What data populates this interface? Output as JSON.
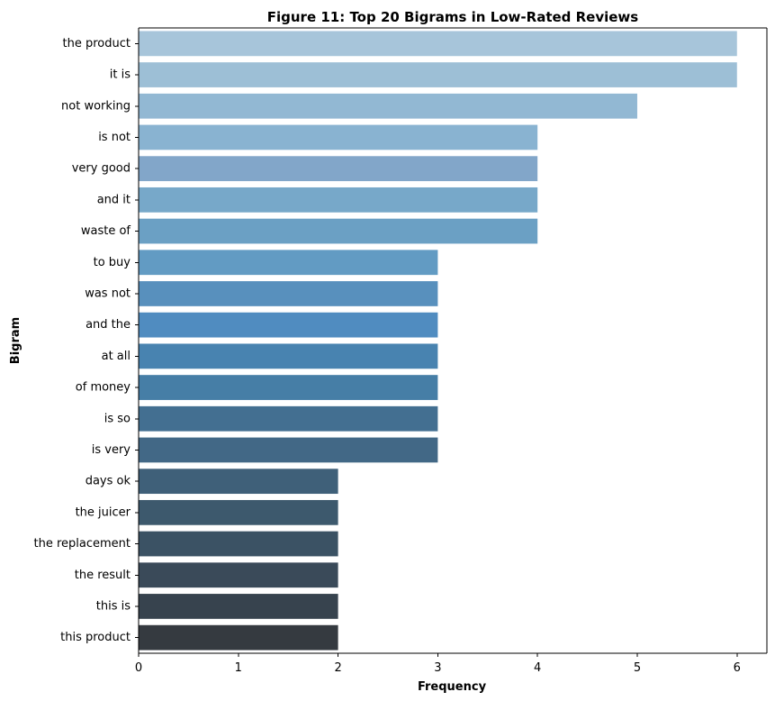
{
  "chart_data": {
    "type": "bar",
    "orientation": "horizontal",
    "title": "Figure 11: Top 20 Bigrams in Low-Rated Reviews",
    "xlabel": "Frequency",
    "ylabel": "Bigram",
    "xlim": [
      0,
      6.3
    ],
    "xticks": [
      0,
      1,
      2,
      3,
      4,
      5,
      6
    ],
    "grid": false,
    "categories": [
      "the product",
      "it is",
      "not working",
      "is not",
      "very good",
      "and it",
      "waste of",
      "to buy",
      "was not",
      "and the",
      "at all",
      "of money",
      "is so",
      "is very",
      "days ok",
      "the juicer",
      "the replacement",
      "the result",
      "this is",
      "this product"
    ],
    "values": [
      6,
      6,
      5,
      4,
      4,
      4,
      4,
      3,
      3,
      3,
      3,
      3,
      3,
      3,
      2,
      2,
      2,
      2,
      2,
      2
    ],
    "colors": [
      "#a7c5da",
      "#9dbfd6",
      "#92b8d3",
      "#89b3d1",
      "#82a6c9",
      "#77a8c9",
      "#6ba0c4",
      "#629bc3",
      "#5890bd",
      "#508cc0",
      "#4883b0",
      "#467ea6",
      "#436f91",
      "#426886",
      "#3f6079",
      "#3d596d",
      "#3b5264",
      "#3a4a59",
      "#37434e",
      "#353a40"
    ]
  }
}
